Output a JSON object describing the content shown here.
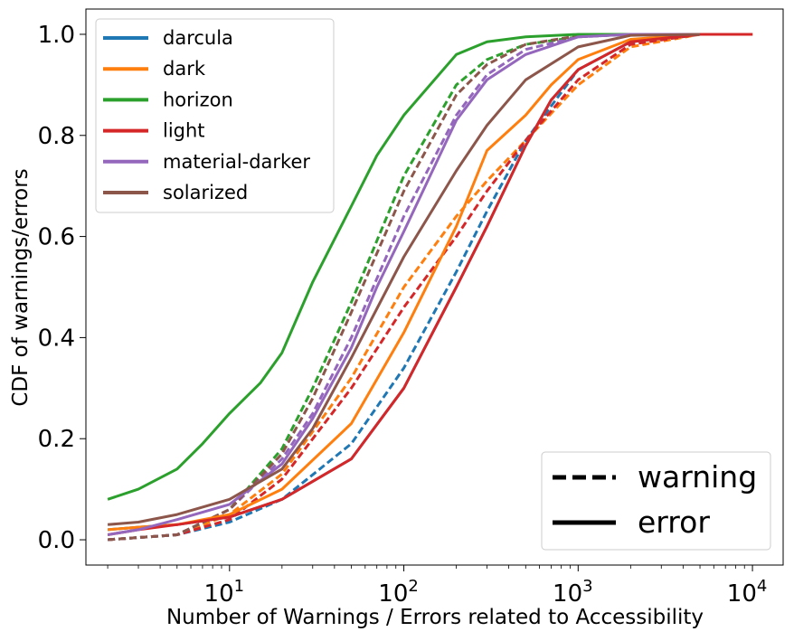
{
  "chart_data": {
    "type": "line",
    "xlabel": "Number of Warnings / Errors related to Accessibility",
    "ylabel": "CDF of warnings/errors",
    "x_scale": "log",
    "xlim": [
      1.5,
      15000
    ],
    "ylim": [
      -0.05,
      1.05
    ],
    "x_ticks": [
      {
        "value": 10,
        "base": "10",
        "exp": "1"
      },
      {
        "value": 100,
        "base": "10",
        "exp": "2"
      },
      {
        "value": 1000,
        "base": "10",
        "exp": "3"
      },
      {
        "value": 10000,
        "base": "10",
        "exp": "4"
      }
    ],
    "y_ticks": [
      {
        "value": 0.0,
        "label": "0.0"
      },
      {
        "value": 0.2,
        "label": "0.2"
      },
      {
        "value": 0.4,
        "label": "0.4"
      },
      {
        "value": 0.6,
        "label": "0.6"
      },
      {
        "value": 0.8,
        "label": "0.8"
      },
      {
        "value": 1.0,
        "label": "1.0"
      }
    ],
    "grid": false,
    "legend_themes_position": "upper-left",
    "legend_styles_position": "lower-right",
    "themes": [
      {
        "name": "darcula",
        "color": "#1f77b4"
      },
      {
        "name": "dark",
        "color": "#ff7f0e"
      },
      {
        "name": "horizon",
        "color": "#2ca02c"
      },
      {
        "name": "light",
        "color": "#d62728"
      },
      {
        "name": "material-darker",
        "color": "#9467bd"
      },
      {
        "name": "solarized",
        "color": "#8c564b"
      }
    ],
    "line_styles": [
      {
        "name": "warning",
        "dash": "dashed"
      },
      {
        "name": "error",
        "dash": "solid"
      }
    ],
    "series": [
      {
        "theme": "darcula",
        "kind": "warning",
        "color": "#1f77b4",
        "x": [
          2,
          5,
          10,
          20,
          50,
          100,
          200,
          300,
          500,
          1000,
          2000,
          5000,
          10000
        ],
        "y": [
          0.0,
          0.01,
          0.035,
          0.08,
          0.19,
          0.34,
          0.53,
          0.65,
          0.79,
          0.93,
          0.985,
          1.0,
          1.0
        ]
      },
      {
        "theme": "darcula",
        "kind": "error",
        "color": "#1f77b4",
        "x": [
          2,
          3,
          5,
          10,
          20,
          50,
          100,
          200,
          300,
          500,
          700,
          1000,
          2000,
          5000,
          10000
        ],
        "y": [
          0.02,
          0.025,
          0.03,
          0.045,
          0.08,
          0.16,
          0.3,
          0.5,
          0.62,
          0.78,
          0.87,
          0.93,
          0.985,
          1.0,
          1.0
        ]
      },
      {
        "theme": "dark",
        "kind": "warning",
        "color": "#ff7f0e",
        "x": [
          2,
          5,
          10,
          20,
          50,
          100,
          200,
          300,
          500,
          1000,
          2000,
          5000,
          10000
        ],
        "y": [
          0.0,
          0.01,
          0.05,
          0.13,
          0.32,
          0.5,
          0.64,
          0.71,
          0.79,
          0.9,
          0.975,
          1.0,
          1.0
        ]
      },
      {
        "theme": "dark",
        "kind": "error",
        "color": "#ff7f0e",
        "x": [
          2,
          3,
          5,
          10,
          20,
          50,
          100,
          200,
          300,
          500,
          700,
          1000,
          2000,
          5000,
          10000
        ],
        "y": [
          0.02,
          0.025,
          0.03,
          0.05,
          0.1,
          0.23,
          0.41,
          0.62,
          0.77,
          0.84,
          0.9,
          0.95,
          0.99,
          1.0,
          1.0
        ]
      },
      {
        "theme": "horizon",
        "kind": "warning",
        "color": "#2ca02c",
        "x": [
          2,
          5,
          10,
          20,
          30,
          50,
          100,
          200,
          300,
          500,
          1000,
          2000,
          5000
        ],
        "y": [
          0.0,
          0.01,
          0.06,
          0.18,
          0.3,
          0.47,
          0.72,
          0.9,
          0.95,
          0.98,
          0.995,
          1.0,
          1.0
        ]
      },
      {
        "theme": "horizon",
        "kind": "error",
        "color": "#2ca02c",
        "x": [
          2,
          3,
          5,
          7,
          10,
          15,
          20,
          30,
          50,
          70,
          100,
          200,
          300,
          500,
          1000,
          2000,
          5000
        ],
        "y": [
          0.08,
          0.1,
          0.14,
          0.19,
          0.25,
          0.31,
          0.37,
          0.51,
          0.66,
          0.76,
          0.84,
          0.96,
          0.985,
          0.995,
          1.0,
          1.0,
          1.0
        ]
      },
      {
        "theme": "light",
        "kind": "warning",
        "color": "#d62728",
        "x": [
          2,
          5,
          10,
          20,
          50,
          100,
          200,
          300,
          500,
          1000,
          2000,
          5000,
          10000
        ],
        "y": [
          0.0,
          0.01,
          0.04,
          0.12,
          0.3,
          0.46,
          0.6,
          0.69,
          0.79,
          0.91,
          0.98,
          1.0,
          1.0
        ]
      },
      {
        "theme": "light",
        "kind": "error",
        "color": "#d62728",
        "x": [
          2,
          3,
          5,
          10,
          20,
          50,
          100,
          200,
          300,
          500,
          700,
          1000,
          2000,
          5000,
          10000
        ],
        "y": [
          0.01,
          0.02,
          0.03,
          0.045,
          0.08,
          0.16,
          0.3,
          0.5,
          0.62,
          0.78,
          0.87,
          0.93,
          0.985,
          1.0,
          1.0
        ]
      },
      {
        "theme": "material-darker",
        "kind": "warning",
        "color": "#9467bd",
        "x": [
          2,
          5,
          10,
          20,
          30,
          50,
          100,
          200,
          300,
          500,
          1000,
          2000,
          5000
        ],
        "y": [
          0.0,
          0.01,
          0.06,
          0.16,
          0.25,
          0.4,
          0.64,
          0.84,
          0.92,
          0.97,
          0.995,
          1.0,
          1.0
        ]
      },
      {
        "theme": "material-darker",
        "kind": "error",
        "color": "#9467bd",
        "x": [
          2,
          3,
          5,
          10,
          20,
          30,
          50,
          70,
          100,
          200,
          300,
          500,
          1000,
          2000,
          5000
        ],
        "y": [
          0.01,
          0.02,
          0.04,
          0.07,
          0.15,
          0.24,
          0.38,
          0.5,
          0.61,
          0.83,
          0.91,
          0.96,
          0.995,
          1.0,
          1.0
        ]
      },
      {
        "theme": "solarized",
        "kind": "warning",
        "color": "#8c564b",
        "x": [
          2,
          5,
          10,
          20,
          30,
          50,
          100,
          200,
          300,
          500,
          1000,
          2000,
          5000
        ],
        "y": [
          0.0,
          0.01,
          0.06,
          0.17,
          0.28,
          0.45,
          0.69,
          0.88,
          0.94,
          0.98,
          0.997,
          1.0,
          1.0
        ]
      },
      {
        "theme": "solarized",
        "kind": "error",
        "color": "#8c564b",
        "x": [
          2,
          3,
          5,
          10,
          20,
          30,
          50,
          100,
          200,
          300,
          500,
          1000,
          2000,
          5000
        ],
        "y": [
          0.03,
          0.035,
          0.05,
          0.08,
          0.14,
          0.22,
          0.36,
          0.56,
          0.73,
          0.82,
          0.91,
          0.975,
          0.998,
          1.0
        ]
      }
    ]
  }
}
